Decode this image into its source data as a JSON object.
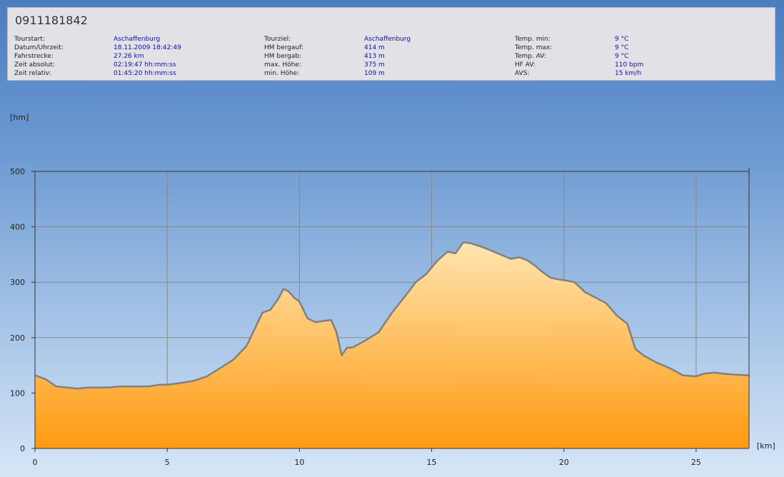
{
  "header": {
    "title": "0911181842",
    "col1": {
      "labels": [
        "Tourstart:",
        "Datum/Uhrzeit:",
        "Fahrstrecke:",
        "Zeit absolut:",
        "Zeit relativ:"
      ],
      "values": [
        "Aschaffenburg",
        "18.11.2009 18:42:49",
        "27.26 km",
        "02:19:47 hh:mm:ss",
        "01:45:20 hh:mm:ss"
      ]
    },
    "col2": {
      "labels": [
        "Tourziel:",
        "HM bergauf:",
        "HM bergab:",
        "max. Höhe:",
        "min. Höhe:"
      ],
      "values": [
        "Aschaffenburg",
        "414 m",
        "413 m",
        "375 m",
        "109 m"
      ]
    },
    "col3": {
      "labels": [
        "Temp. min:",
        "Temp. max:",
        "Temp. AV:",
        "HF AV:",
        "AVS:"
      ],
      "values": [
        "9 °C",
        "9 °C",
        "9 °C",
        "110 bpm",
        "15 km/h"
      ]
    }
  },
  "colors": {
    "fill_top": "#ffe4b0",
    "fill_bottom": "#ff9a10",
    "stroke": "#808080",
    "grid": "#888888",
    "label_blue": "#1010b0"
  },
  "chart_data": {
    "type": "area",
    "ylabel": "[hm]",
    "xlabel": "[km]",
    "xlim": [
      0,
      27
    ],
    "ylim": [
      0,
      500
    ],
    "xticks": [
      0,
      5,
      10,
      15,
      20,
      25
    ],
    "yticks": [
      0,
      100,
      200,
      300,
      400,
      500
    ],
    "grid": true,
    "x": [
      0,
      0.4,
      0.8,
      1.2,
      1.6,
      2.0,
      2.4,
      2.8,
      3.2,
      3.5,
      3.9,
      4.3,
      4.7,
      5.0,
      5.5,
      6.0,
      6.5,
      7.0,
      7.5,
      8.0,
      8.3,
      8.6,
      8.9,
      9.2,
      9.4,
      9.6,
      9.8,
      10.0,
      10.3,
      10.6,
      10.9,
      11.2,
      11.4,
      11.6,
      11.8,
      12.0,
      12.5,
      13.0,
      13.5,
      14.0,
      14.4,
      14.8,
      15.2,
      15.6,
      15.9,
      16.2,
      16.5,
      17.0,
      17.5,
      18.0,
      18.3,
      18.6,
      18.9,
      19.2,
      19.5,
      19.8,
      20.1,
      20.4,
      20.8,
      21.2,
      21.6,
      22.0,
      22.4,
      22.7,
      23.0,
      23.5,
      24.0,
      24.5,
      25.0,
      25.3,
      25.7,
      26.0,
      26.5,
      27.0
    ],
    "y": [
      132,
      125,
      112,
      110,
      108,
      110,
      110,
      110,
      112,
      112,
      112,
      112,
      115,
      115,
      118,
      122,
      130,
      145,
      160,
      185,
      215,
      245,
      250,
      270,
      288,
      283,
      272,
      265,
      235,
      228,
      230,
      232,
      210,
      168,
      182,
      182,
      195,
      210,
      245,
      275,
      300,
      315,
      338,
      355,
      352,
      372,
      370,
      362,
      352,
      342,
      345,
      340,
      330,
      318,
      308,
      305,
      303,
      300,
      282,
      272,
      262,
      240,
      225,
      180,
      168,
      155,
      145,
      132,
      130,
      135,
      137,
      135,
      133,
      132
    ]
  }
}
